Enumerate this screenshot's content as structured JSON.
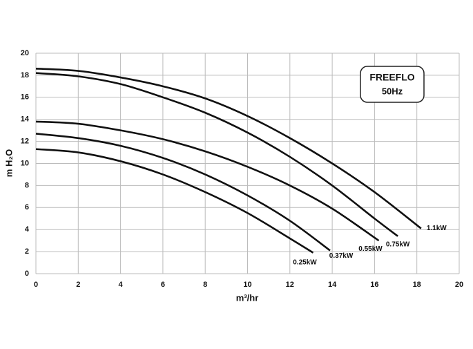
{
  "chart_data": {
    "type": "line",
    "annotation": [
      "FREEFLO",
      "50Hz"
    ],
    "x_label": "m³/hr",
    "y_label": "m H₂O",
    "xlim": [
      0,
      20
    ],
    "xticks": [
      0,
      2,
      4,
      6,
      8,
      10,
      12,
      14,
      16,
      18,
      20
    ],
    "ylim": [
      0,
      20
    ],
    "yticks": [
      0,
      2,
      4,
      6,
      8,
      10,
      12,
      14,
      16,
      18,
      20
    ],
    "grid": true,
    "series": [
      {
        "name": "1.1kW",
        "color": "#111111",
        "x": [
          0,
          2,
          4,
          6,
          8,
          10,
          12,
          14,
          16,
          18.2
        ],
        "values": [
          18.6,
          18.4,
          17.8,
          17.0,
          15.9,
          14.3,
          12.3,
          10.0,
          7.4,
          4.1
        ]
      },
      {
        "name": "0.75kW",
        "color": "#111111",
        "x": [
          0,
          2,
          4,
          6,
          8,
          10,
          12,
          14,
          16,
          17.1
        ],
        "values": [
          18.2,
          17.9,
          17.2,
          16.0,
          14.6,
          12.8,
          10.6,
          8.0,
          5.0,
          3.4
        ]
      },
      {
        "name": "0.55kW",
        "color": "#111111",
        "x": [
          0,
          2,
          4,
          6,
          8,
          10,
          12,
          14,
          16.2
        ],
        "values": [
          13.8,
          13.6,
          13.0,
          12.2,
          11.1,
          9.7,
          8.0,
          5.9,
          3.0
        ]
      },
      {
        "name": "0.37kW",
        "color": "#111111",
        "x": [
          0,
          2,
          4,
          6,
          8,
          10,
          12,
          13.9
        ],
        "values": [
          12.7,
          12.3,
          11.6,
          10.5,
          9.0,
          7.1,
          4.8,
          2.1
        ]
      },
      {
        "name": "0.25kW",
        "color": "#111111",
        "x": [
          0,
          2,
          4,
          6,
          8,
          10,
          12,
          13.1
        ],
        "values": [
          11.3,
          11.0,
          10.2,
          9.0,
          7.4,
          5.5,
          3.2,
          1.9
        ]
      }
    ]
  }
}
